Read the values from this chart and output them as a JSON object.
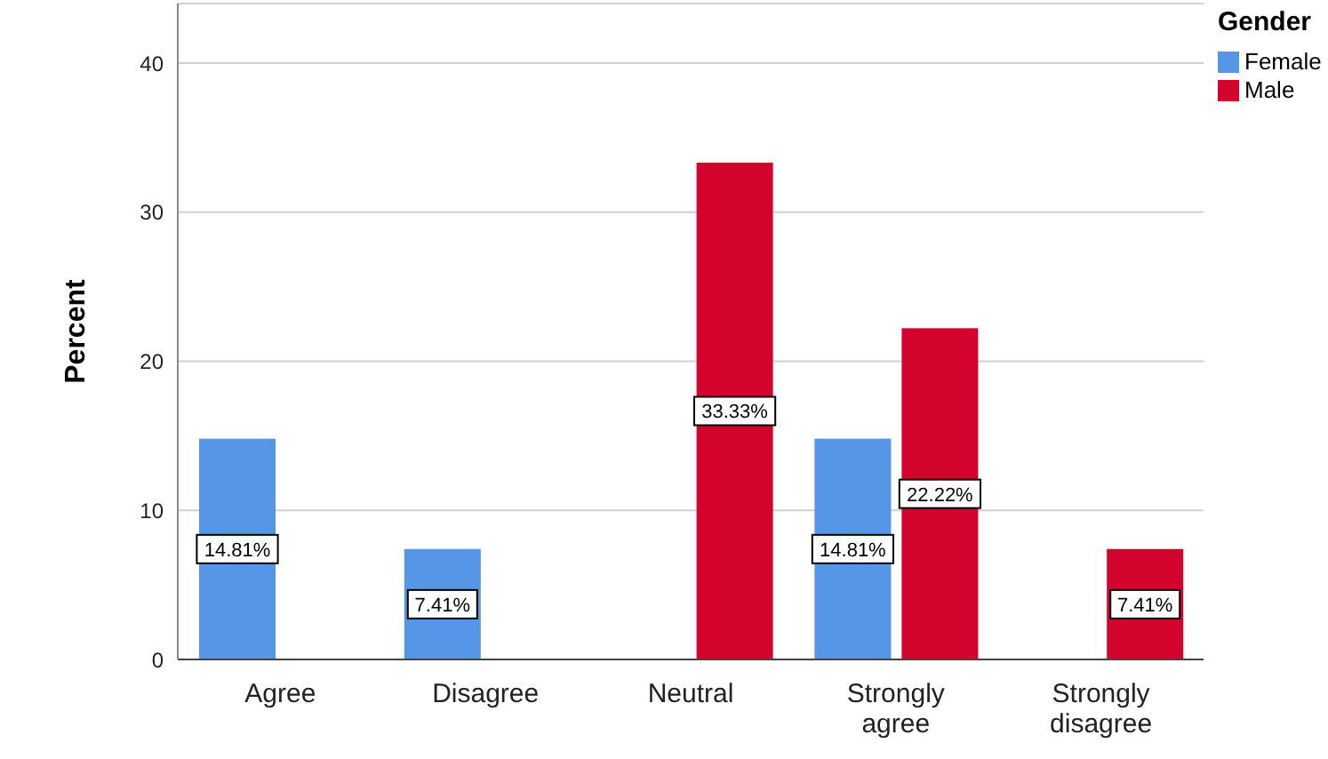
{
  "chart_data": {
    "type": "bar",
    "ylabel": "Percent",
    "legend_title": "Gender",
    "categories": [
      "Agree",
      "Disagree",
      "Neutral",
      "Strongly agree",
      "Strongly disagree"
    ],
    "series": [
      {
        "name": "Female",
        "color": "#5596e6",
        "values": [
          14.81,
          7.41,
          null,
          14.81,
          null
        ],
        "value_labels": [
          "14.81%",
          "7.41%",
          null,
          "14.81%",
          null
        ]
      },
      {
        "name": "Male",
        "color": "#d2042d",
        "values": [
          null,
          null,
          33.33,
          22.22,
          7.41
        ],
        "value_labels": [
          null,
          null,
          "33.33%",
          "22.22%",
          "7.41%"
        ]
      }
    ],
    "ylim": [
      0,
      44
    ],
    "yticks": [
      0,
      10,
      20,
      30,
      40
    ],
    "grid": "y",
    "legend": "top right"
  }
}
